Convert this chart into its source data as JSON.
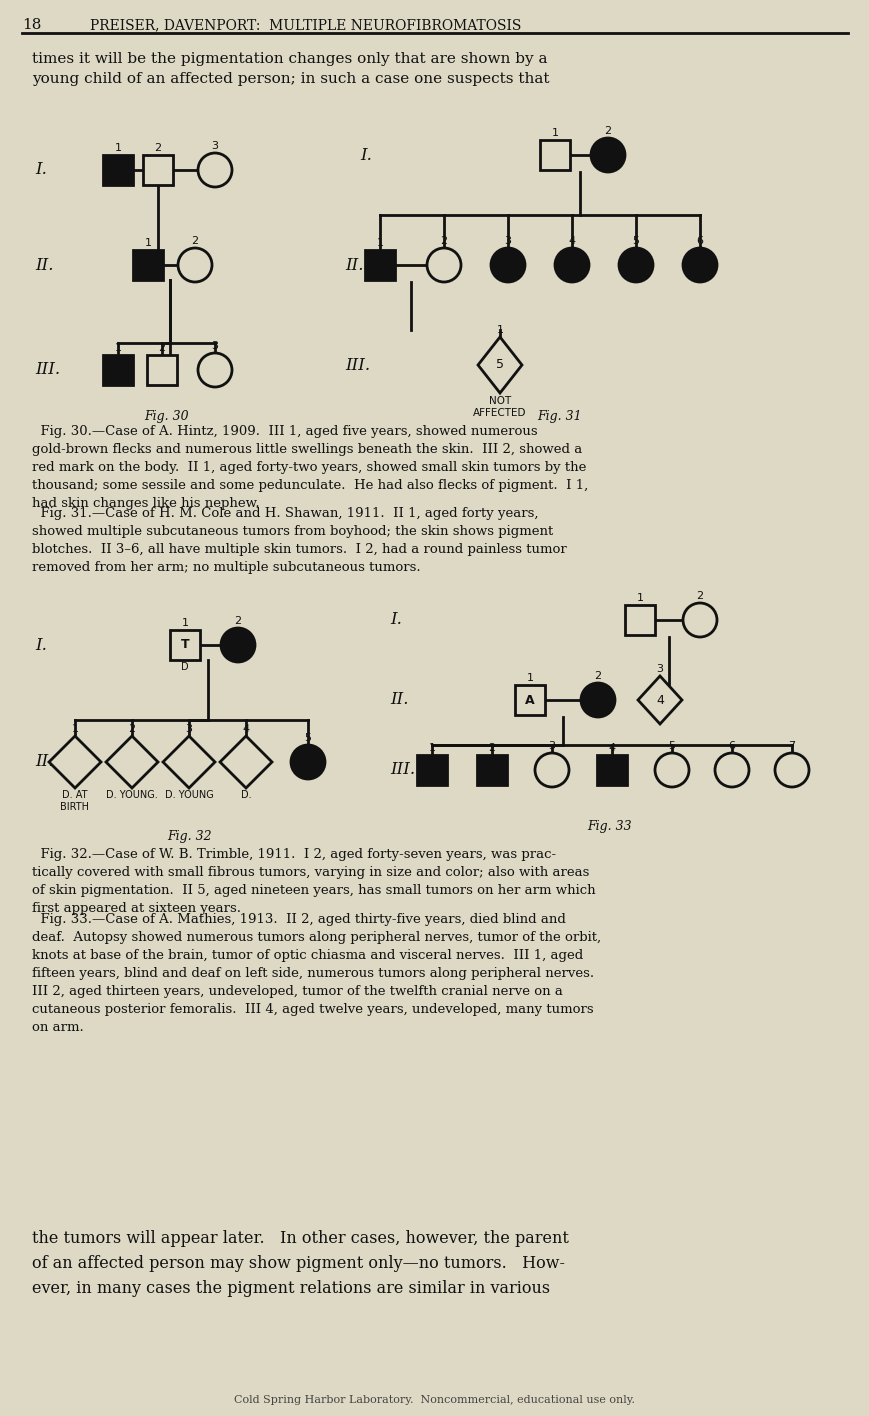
{
  "bg_color": "#ddd9c4",
  "text_color": "#1a1a1a",
  "header_num": "18",
  "header_title": "PREISER, DAVENPORT:  MULTIPLE NEUROFIBROMATOSIS",
  "top_paragraph": "times it will be the pigmentation changes only that are shown by a\nyoung child of an affected person; in such a case one suspects that",
  "bottom_paragraph": "the tumors will appear later.   In other cases, however, the parent\nof an affected person may show pigment only—no tumors.   How-\never, in many cases the pigment relations are similar in various",
  "footer_text": "Cold Spring Harbor Laboratory.  Noncommercial, educational use only.",
  "fig30_label": "Fig. 30",
  "fig31_label": "Fig. 31",
  "fig32_label": "Fig. 32",
  "fig33_label": "Fig. 33",
  "fig30_caption": "  Fig. 30.—Case of A. Hintz, 1909.  III 1, aged five years, showed numerous\ngold-brown flecks and numerous little swellings beneath the skin.  III 2, showed a\nred mark on the body.  II 1, aged forty-two years, showed small skin tumors by the\nthousand; some sessile and some pedunculate.  He had also flecks of pigment.  I 1,\nhad skin changes like his nephew.",
  "fig31_caption": "  Fig. 31.—Case of H. M. Cole and H. Shawan, 1911.  II 1, aged forty years,\nshowed multiple subcutaneous tumors from boyhood; the skin shows pigment\nblotches.  II 3–6, all have multiple skin tumors.  I 2, had a round painless tumor\nremoved from her arm; no multiple subcutaneous tumors.",
  "fig32_caption": "  Fig. 32.—Case of W. B. Trimble, 1911.  I 2, aged forty-seven years, was prac-\ntically covered with small fibrous tumors, varying in size and color; also with areas\nof skin pigmentation.  II 5, aged nineteen years, has small tumors on her arm which\nfirst appeared at sixteen years.",
  "fig33_caption": "  Fig. 33.—Case of A. Mathies, 1913.  II 2, aged thirty-five years, died blind and\ndeaf.  Autopsy showed numerous tumors along peripheral nerves, tumor of the orbit,\nknots at base of the brain, tumor of optic chiasma and visceral nerves.  III 1, aged\nfifteen years, blind and deaf on left side, numerous tumors along peripheral nerves.\nIII 2, aged thirteen years, undeveloped, tumor of the twelfth cranial nerve on a\ncutaneous posterior femoralis.  III 4, aged twelve years, undeveloped, many tumors\non arm."
}
